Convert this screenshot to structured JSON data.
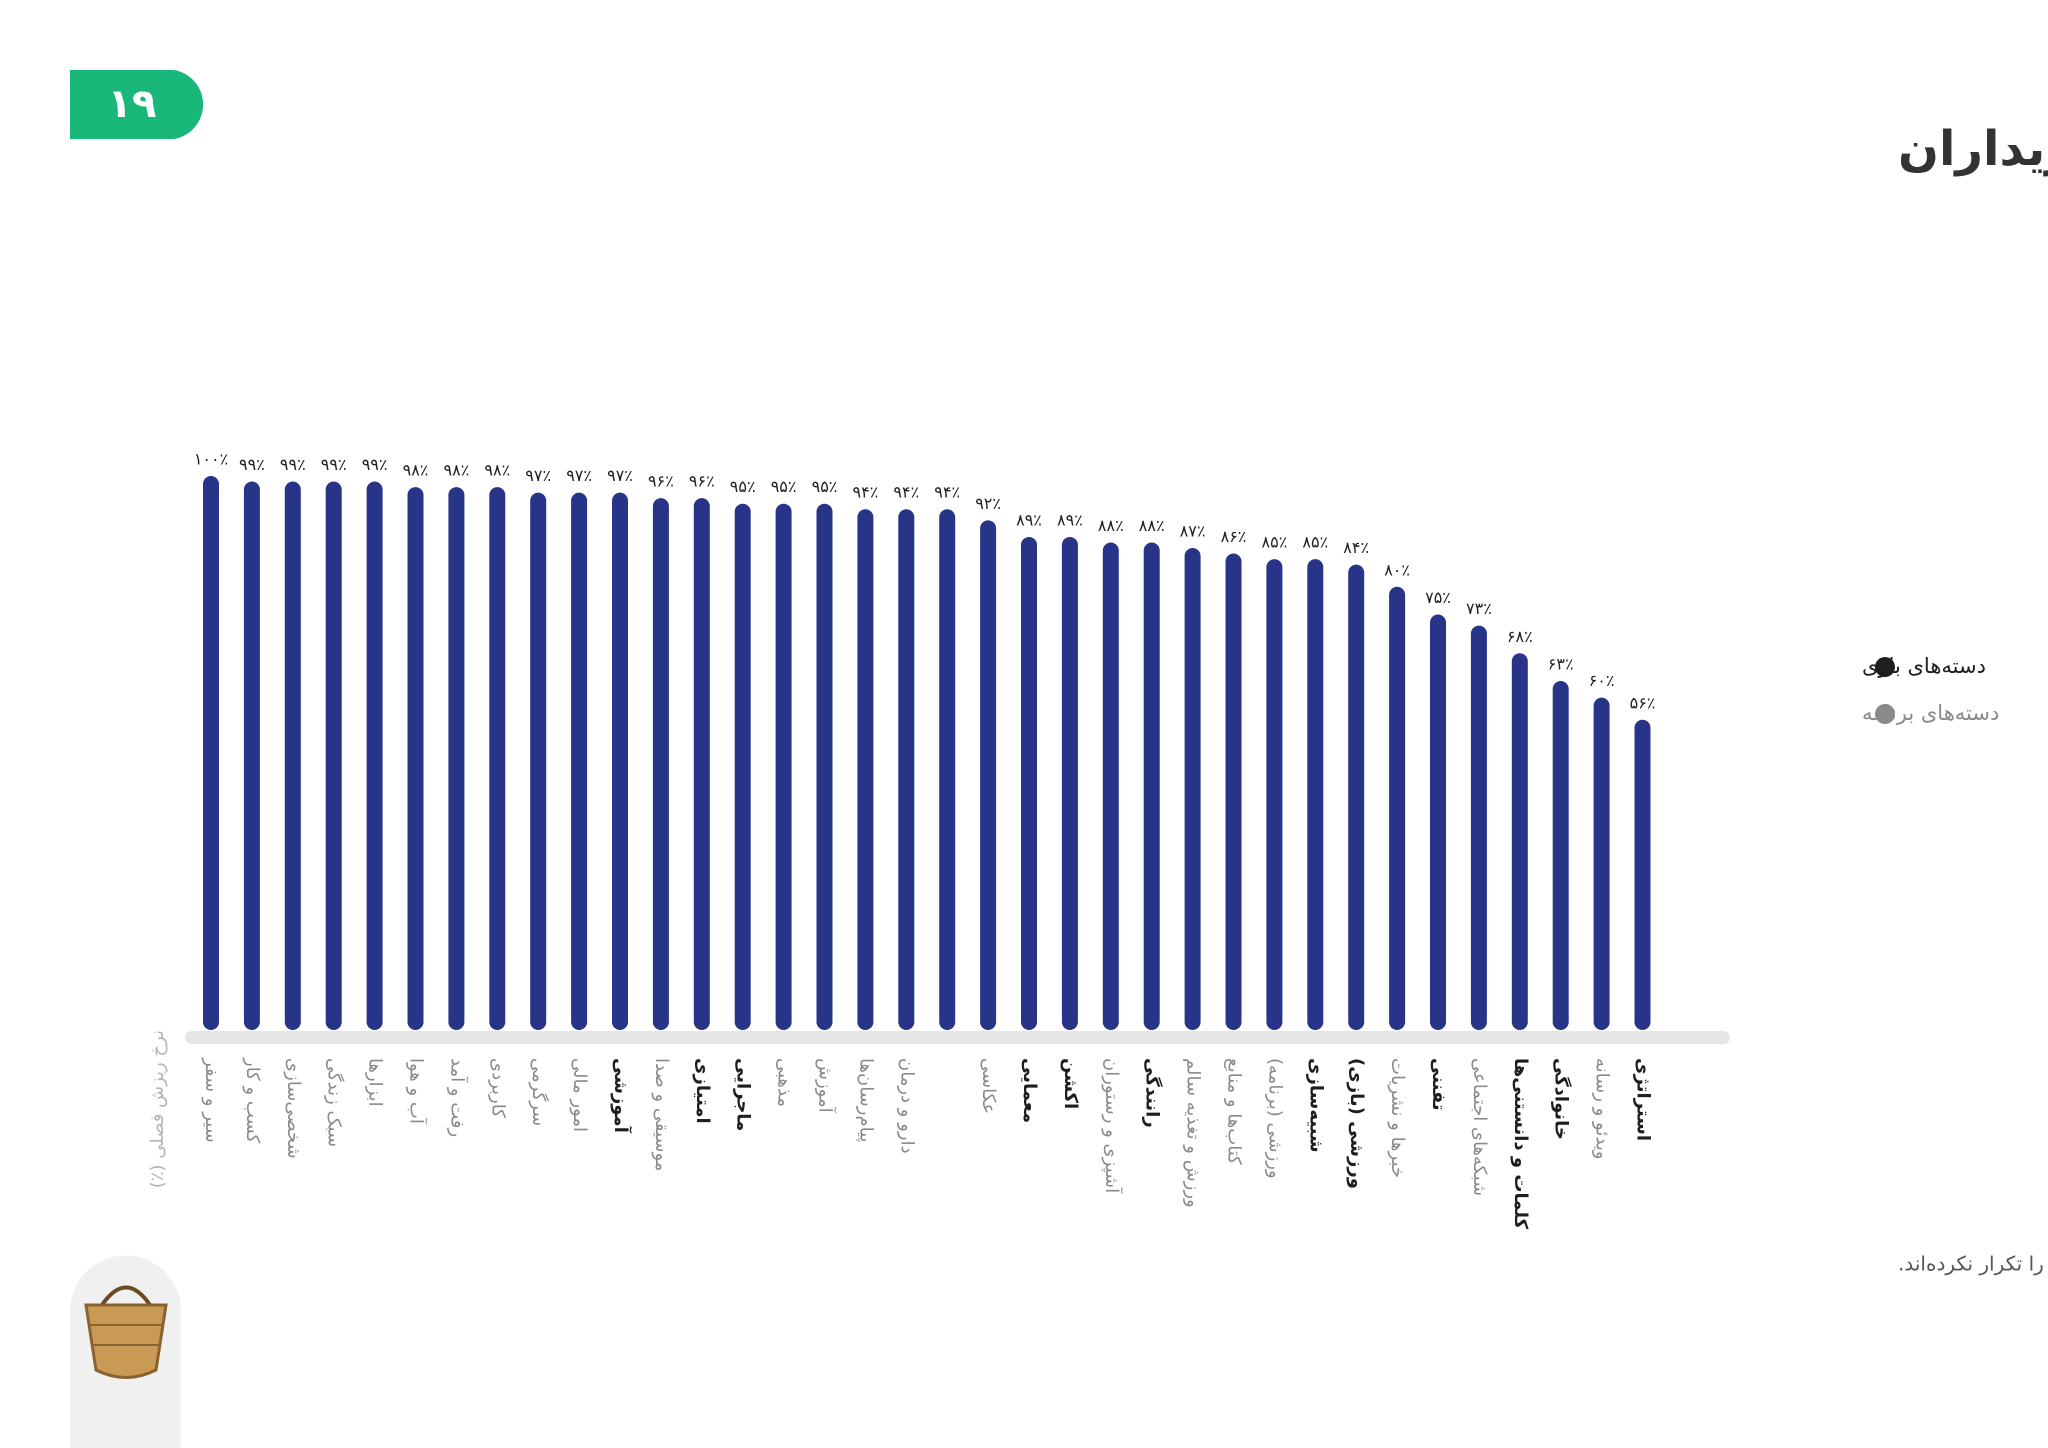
{
  "page_number": "۱۹",
  "chart_data": {
    "type": "bar",
    "title": "نرخ ریزش فصلی خریداران",
    "y_axis_label": "نرخ ریزش فصلی (٪)",
    "footnote": "نرخ ریزش به‌ازای خریداران محاسبه شده است. این نرخ به این معناست که چند درصد از خریداران فصل تابستان، در فصل پاییز خرید خود را تکرار نکرده‌اند.",
    "categories": [
      "سیر و سفر",
      "کسب و کار",
      "شخصی‌سازی",
      "سبک زندگی",
      "ابزارها",
      "آب و هوا",
      "رفت و آمد",
      "کاربردی",
      "سرگرمی",
      "امور مالی",
      "آموزشی",
      "موسیقی و صدا",
      "امتیازی",
      "ماجرایی",
      "مذهبی",
      "آموزش",
      "پیام‌رسان‌ها",
      "دارو و درمان",
      null,
      "عکاسی",
      "معمایی",
      "اکشن",
      "آشپزی و رستوران",
      "رانندگی",
      "ورزش و تغذیه سالم",
      "کتاب‌ها و منابع",
      "ورزشی (برنامه)",
      "شبیه‌سازی",
      "ورزشی (بازی)",
      "خبرها و نشریات",
      "تفننی",
      "شبکه‌های اجتماعی",
      "کلمات و دانستنی‌ها",
      "خانوادگی",
      "ویدئو و رسانه",
      "استراتژی"
    ],
    "category_group": [
      1,
      1,
      1,
      1,
      1,
      1,
      1,
      1,
      1,
      1,
      0,
      1,
      0,
      0,
      1,
      1,
      1,
      1,
      1,
      1,
      0,
      0,
      1,
      0,
      1,
      1,
      1,
      0,
      0,
      1,
      0,
      1,
      0,
      0,
      1,
      0
    ],
    "values": [
      100,
      99,
      99,
      99,
      99,
      98,
      98,
      98,
      97,
      97,
      97,
      96,
      96,
      95,
      95,
      95,
      94,
      94,
      94,
      92,
      89,
      89,
      88,
      88,
      87,
      86,
      85,
      85,
      84,
      80,
      75,
      73,
      68,
      63,
      60,
      56
    ],
    "value_labels": [
      "۱۰۰٪",
      "۹۹٪",
      "۹۹٪",
      "۹۹٪",
      "۹۹٪",
      "۹۸٪",
      "۹۸٪",
      "۹۸٪",
      "۹۷٪",
      "۹۷٪",
      "۹۷٪",
      "۹۶٪",
      "۹۶٪",
      "۹۵٪",
      "۹۵٪",
      "۹۵٪",
      "۹۴٪",
      "۹۴٪",
      "۹۴٪",
      "۹۲٪",
      "۸۹٪",
      "۸۹٪",
      "۸۸٪",
      "۸۸٪",
      "۸۷٪",
      "۸۶٪",
      "۸۵٪",
      "۸۵٪",
      "۸۴٪",
      "۸۰٪",
      "۷۵٪",
      "۷۳٪",
      "۶۸٪",
      "۶۳٪",
      "۶۰٪",
      "۵۶٪"
    ],
    "color": "#283488",
    "ylim": [
      0,
      100
    ],
    "legend": [
      {
        "name": "دسته‌های بازی",
        "color": "#1e1e1e"
      },
      {
        "name": "دسته‌های برنامه",
        "color": "#8a8a8a"
      }
    ]
  }
}
